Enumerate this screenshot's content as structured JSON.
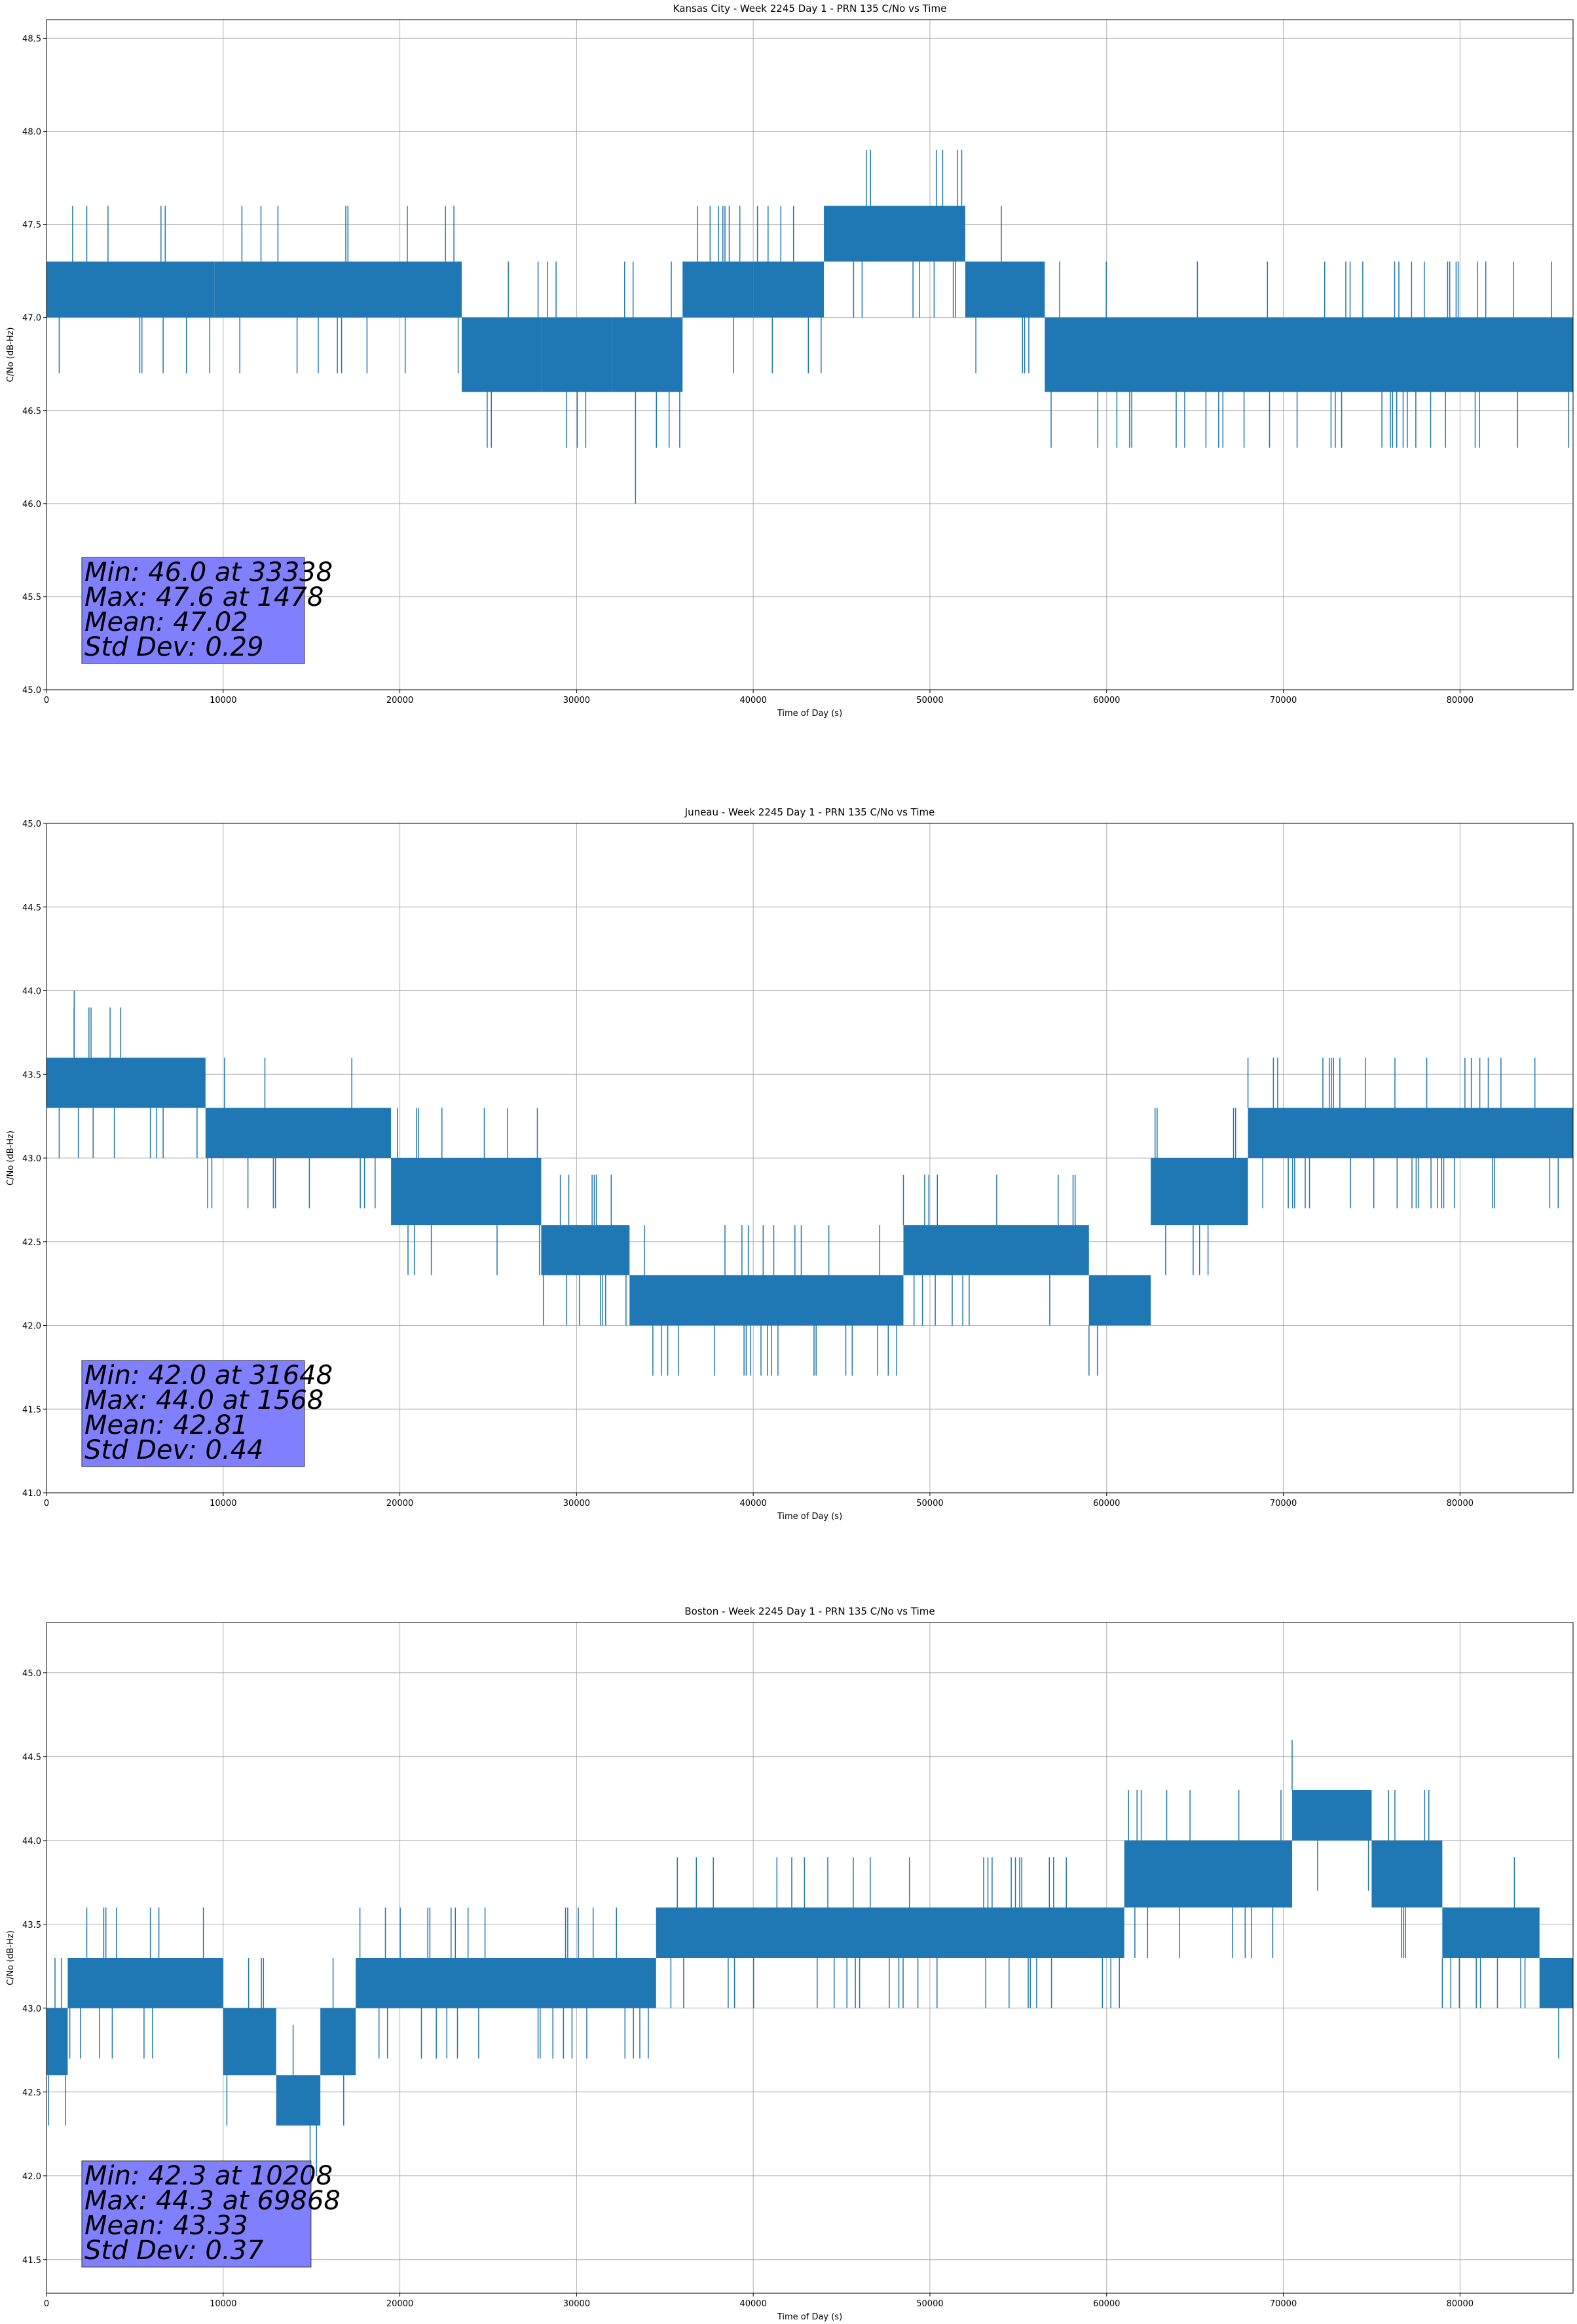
{
  "chart_data": [
    {
      "type": "line",
      "title": "Kansas City - Week 2245 Day 1 - PRN 135 C/No vs Time",
      "xlabel": "Time of Day (s)",
      "ylabel": "C/No (dB-Hz)",
      "xlim": [
        0,
        86400
      ],
      "ylim": [
        45.0,
        48.6
      ],
      "xticks": [
        0,
        10000,
        20000,
        30000,
        40000,
        50000,
        60000,
        70000,
        80000
      ],
      "yticks": [
        45.0,
        45.5,
        46.0,
        46.5,
        47.0,
        47.5,
        48.0,
        48.5
      ],
      "ytick_decimals": 1,
      "grid": true,
      "color": "#1f77b4",
      "quantum": 0.3,
      "series": [
        {
          "segments": [
            {
              "x0": 0,
              "x1": 9500,
              "lo": 47.0,
              "hi": 47.3
            },
            {
              "x0": 9500,
              "x1": 23500,
              "lo": 47.0,
              "hi": 47.3
            },
            {
              "x0": 23500,
              "x1": 28000,
              "lo": 46.6,
              "hi": 47.0
            },
            {
              "x0": 28000,
              "x1": 32000,
              "lo": 46.6,
              "hi": 47.0
            },
            {
              "x0": 32000,
              "x1": 36000,
              "lo": 46.6,
              "hi": 47.0
            },
            {
              "x0": 36000,
              "x1": 40000,
              "lo": 47.0,
              "hi": 47.3
            },
            {
              "x0": 40000,
              "x1": 44000,
              "lo": 47.0,
              "hi": 47.3
            },
            {
              "x0": 44000,
              "x1": 52000,
              "lo": 47.3,
              "hi": 47.6
            },
            {
              "x0": 52000,
              "x1": 56500,
              "lo": 47.0,
              "hi": 47.3
            },
            {
              "x0": 56500,
              "x1": 86400,
              "lo": 46.6,
              "hi": 47.0
            }
          ]
        }
      ],
      "min_point": {
        "x": 33338,
        "y": 46.0
      },
      "max_point": {
        "x": 1478,
        "y": 47.6
      },
      "stats": [
        "Min: 46.0 at 33338",
        "Max: 47.6 at 1478",
        "Mean: 47.02",
        "Std Dev: 0.29"
      ],
      "stats_box_color": "#8080ff"
    },
    {
      "type": "line",
      "title": "Juneau - Week 2245 Day 1 - PRN 135 C/No vs Time",
      "xlabel": "Time of Day (s)",
      "ylabel": "C/No (dB-Hz)",
      "xlim": [
        0,
        86400
      ],
      "ylim": [
        41.0,
        45.0
      ],
      "xticks": [
        0,
        10000,
        20000,
        30000,
        40000,
        50000,
        60000,
        70000,
        80000
      ],
      "yticks": [
        41.0,
        41.5,
        42.0,
        42.5,
        43.0,
        43.5,
        44.0,
        44.5,
        45.0
      ],
      "ytick_decimals": 1,
      "grid": true,
      "color": "#1f77b4",
      "quantum": 0.3,
      "series": [
        {
          "segments": [
            {
              "x0": 0,
              "x1": 9000,
              "lo": 43.3,
              "hi": 43.6
            },
            {
              "x0": 9000,
              "x1": 19500,
              "lo": 43.0,
              "hi": 43.3
            },
            {
              "x0": 19500,
              "x1": 28000,
              "lo": 42.6,
              "hi": 43.0
            },
            {
              "x0": 28000,
              "x1": 33000,
              "lo": 42.3,
              "hi": 42.6
            },
            {
              "x0": 33000,
              "x1": 48500,
              "lo": 42.0,
              "hi": 42.3
            },
            {
              "x0": 48500,
              "x1": 59000,
              "lo": 42.3,
              "hi": 42.6
            },
            {
              "x0": 59000,
              "x1": 62500,
              "lo": 42.0,
              "hi": 42.3
            },
            {
              "x0": 62500,
              "x1": 68000,
              "lo": 42.6,
              "hi": 43.0
            },
            {
              "x0": 68000,
              "x1": 72000,
              "lo": 43.0,
              "hi": 43.3
            },
            {
              "x0": 72000,
              "x1": 86400,
              "lo": 43.0,
              "hi": 43.3
            }
          ]
        }
      ],
      "min_point": {
        "x": 31648,
        "y": 42.0
      },
      "max_point": {
        "x": 1568,
        "y": 44.0
      },
      "stats": [
        "Min: 42.0 at 31648",
        "Max: 44.0 at 1568",
        "Mean: 42.81",
        "Std Dev: 0.44"
      ],
      "stats_box_color": "#8080ff"
    },
    {
      "type": "line",
      "title": "Boston - Week 2245 Day 1 - PRN 135 C/No vs Time",
      "xlabel": "Time of Day (s)",
      "ylabel": "C/No (dB-Hz)",
      "xlim": [
        0,
        86400
      ],
      "ylim": [
        41.3,
        45.3
      ],
      "xticks": [
        0,
        10000,
        20000,
        30000,
        40000,
        50000,
        60000,
        70000,
        80000
      ],
      "yticks": [
        41.5,
        42.0,
        42.5,
        43.0,
        43.5,
        44.0,
        44.5,
        45.0
      ],
      "ytick_decimals": 1,
      "grid": true,
      "color": "#1f77b4",
      "quantum": 0.3,
      "series": [
        {
          "segments": [
            {
              "x0": 0,
              "x1": 1200,
              "lo": 42.6,
              "hi": 43.0
            },
            {
              "x0": 1200,
              "x1": 10000,
              "lo": 43.0,
              "hi": 43.3
            },
            {
              "x0": 10000,
              "x1": 13000,
              "lo": 42.6,
              "hi": 43.0
            },
            {
              "x0": 13000,
              "x1": 15500,
              "lo": 42.3,
              "hi": 42.6
            },
            {
              "x0": 15500,
              "x1": 17500,
              "lo": 42.6,
              "hi": 43.0
            },
            {
              "x0": 17500,
              "x1": 34500,
              "lo": 43.0,
              "hi": 43.3
            },
            {
              "x0": 34500,
              "x1": 48000,
              "lo": 43.3,
              "hi": 43.6
            },
            {
              "x0": 48000,
              "x1": 61000,
              "lo": 43.3,
              "hi": 43.6
            },
            {
              "x0": 61000,
              "x1": 70500,
              "lo": 43.6,
              "hi": 44.0
            },
            {
              "x0": 70500,
              "x1": 75000,
              "lo": 44.0,
              "hi": 44.3
            },
            {
              "x0": 75000,
              "x1": 79000,
              "lo": 43.6,
              "hi": 44.0
            },
            {
              "x0": 79000,
              "x1": 84500,
              "lo": 43.3,
              "hi": 43.6
            },
            {
              "x0": 84500,
              "x1": 86400,
              "lo": 43.0,
              "hi": 43.3
            }
          ]
        }
      ],
      "min_point": {
        "x": 10208,
        "y": 42.3
      },
      "max_point": {
        "x": 69868,
        "y": 44.3
      },
      "stats": [
        "Min: 42.3 at 10208",
        "Max: 44.3 at 69868",
        "Mean: 43.33",
        "Std Dev: 0.37"
      ],
      "stats_box_color": "#8080ff"
    }
  ]
}
